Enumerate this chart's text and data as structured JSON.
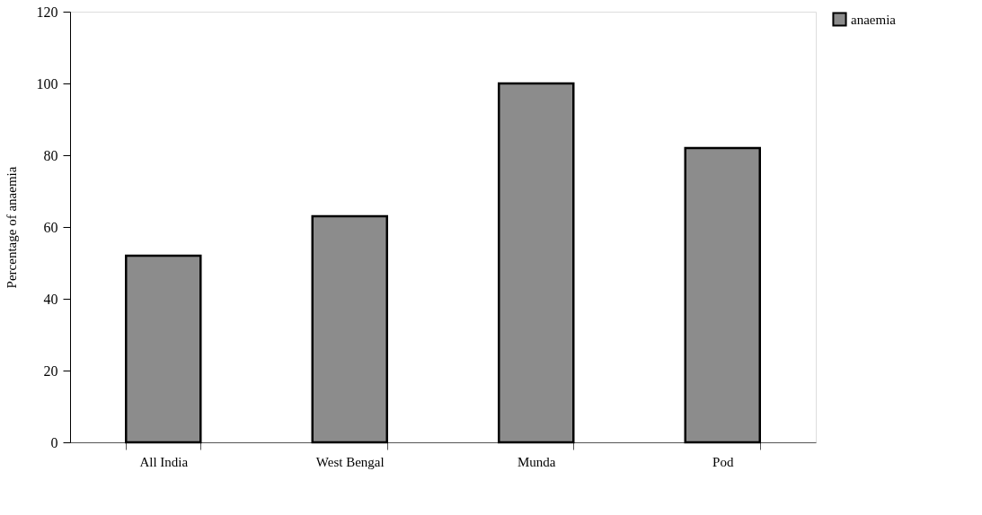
{
  "chart_data": {
    "type": "bar",
    "categories": [
      "All India",
      "West Bengal",
      "Munda",
      "Pod"
    ],
    "series": [
      {
        "name": "anaemia",
        "color": "#8c8c8c",
        "values": [
          52,
          63,
          100,
          82
        ]
      }
    ],
    "ylabel": "Percentage of anaemia",
    "ylim": [
      0,
      120
    ],
    "yticks": [
      0,
      20,
      40,
      60,
      80,
      100,
      120
    ],
    "grid": false,
    "legend": "right"
  }
}
